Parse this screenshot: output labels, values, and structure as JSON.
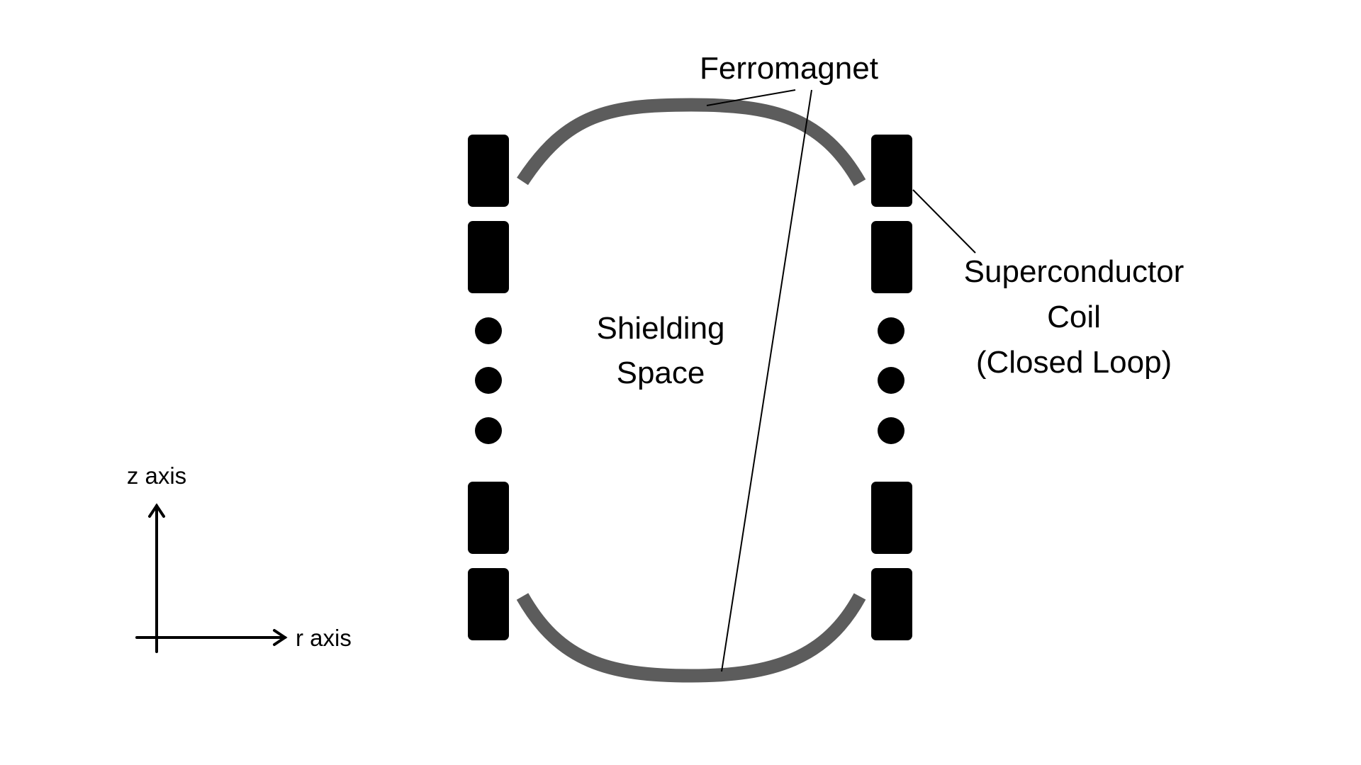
{
  "colors": {
    "background": "#ffffff",
    "coil": "#000000",
    "ferromagnet": "#5c5c5c",
    "leader_line": "#000000"
  },
  "labels": {
    "ferromagnet": "Ferromagnet",
    "shielding_space": [
      "Shielding",
      "Space"
    ],
    "superconductor_coil": [
      "Superconductor",
      "Coil",
      "(Closed Loop)"
    ],
    "z_axis": "z axis",
    "r_axis": "r axis"
  }
}
